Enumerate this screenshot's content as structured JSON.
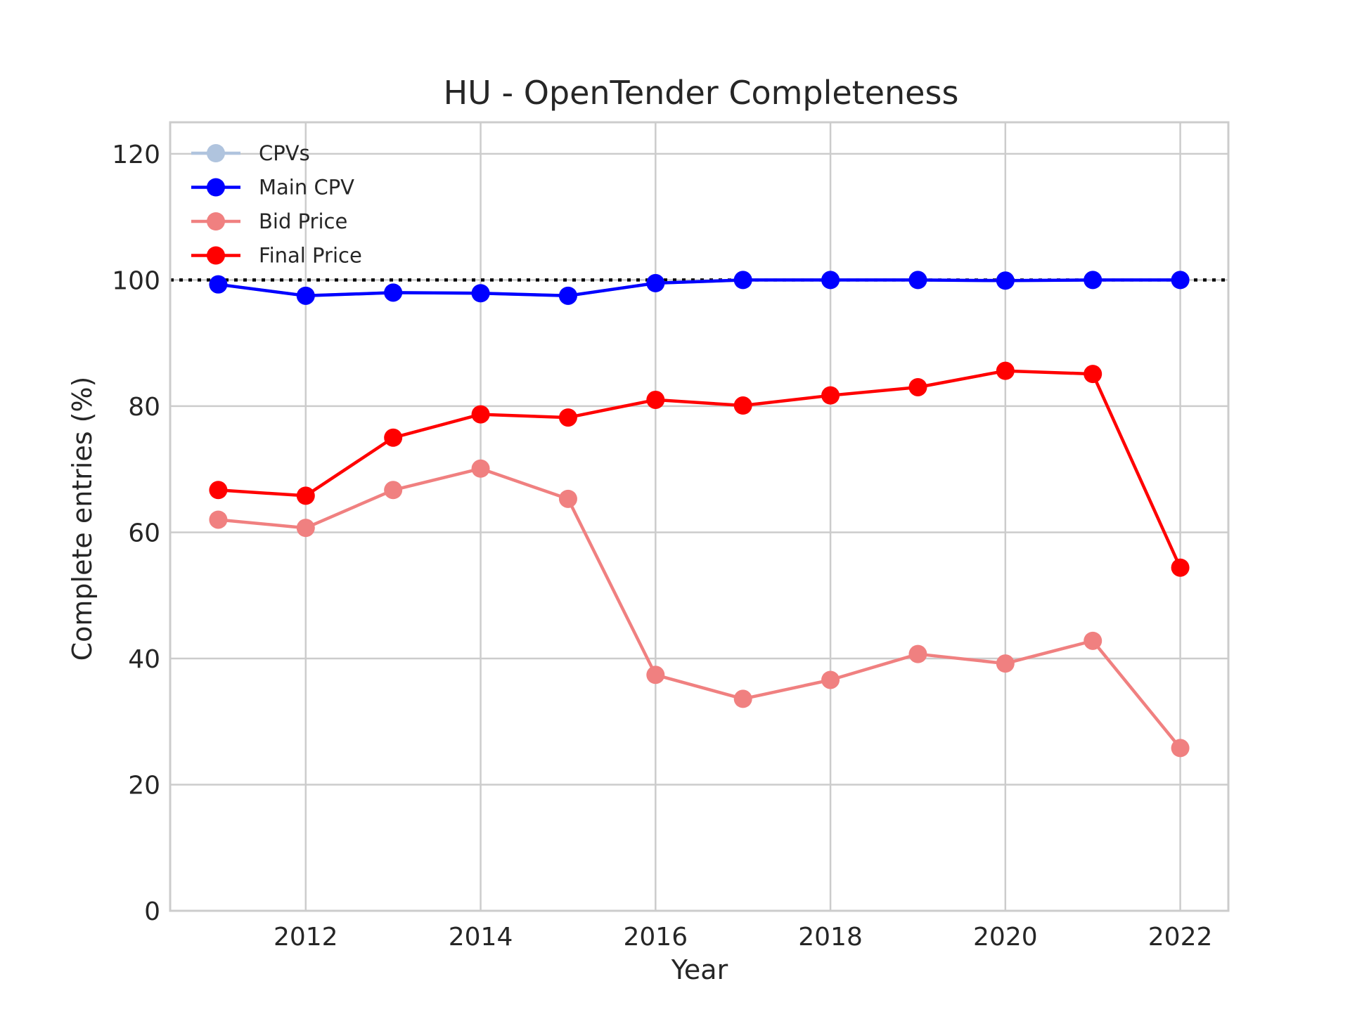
{
  "chart_data": {
    "type": "line",
    "title": "HU - OpenTender Completeness",
    "xlabel": "Year",
    "ylabel": "Complete entries (%)",
    "x": [
      2011,
      2012,
      2013,
      2014,
      2015,
      2016,
      2017,
      2018,
      2019,
      2020,
      2021,
      2022
    ],
    "xlim": [
      2010.45,
      2022.55
    ],
    "ylim": [
      0,
      125
    ],
    "xticks": [
      2012,
      2014,
      2016,
      2018,
      2020,
      2022
    ],
    "yticks": [
      0,
      20,
      40,
      60,
      80,
      100,
      120
    ],
    "grid": true,
    "legend": "top-left",
    "reference_line": {
      "y": 100,
      "style": "dotted",
      "color": "#000000"
    },
    "series": [
      {
        "name": "CPVs",
        "color": "#b0c4de",
        "values": [
          99.3,
          97.5,
          98.0,
          97.9,
          97.5,
          99.5,
          100.0,
          100.0,
          100.0,
          99.9,
          100.0,
          100.0
        ]
      },
      {
        "name": "Main CPV",
        "color": "#0000ff",
        "values": [
          99.3,
          97.5,
          98.0,
          97.9,
          97.5,
          99.5,
          100.0,
          100.0,
          100.0,
          99.9,
          100.0,
          100.0
        ]
      },
      {
        "name": "Bid Price",
        "color": "#f08080",
        "values": [
          62.0,
          60.7,
          66.7,
          70.1,
          65.3,
          37.4,
          33.6,
          36.6,
          40.7,
          39.2,
          42.8,
          25.8
        ]
      },
      {
        "name": "Final Price",
        "color": "#ff0000",
        "values": [
          66.7,
          65.8,
          75.0,
          78.7,
          78.2,
          81.0,
          80.1,
          81.7,
          83.0,
          85.6,
          85.1,
          54.4
        ]
      }
    ]
  }
}
